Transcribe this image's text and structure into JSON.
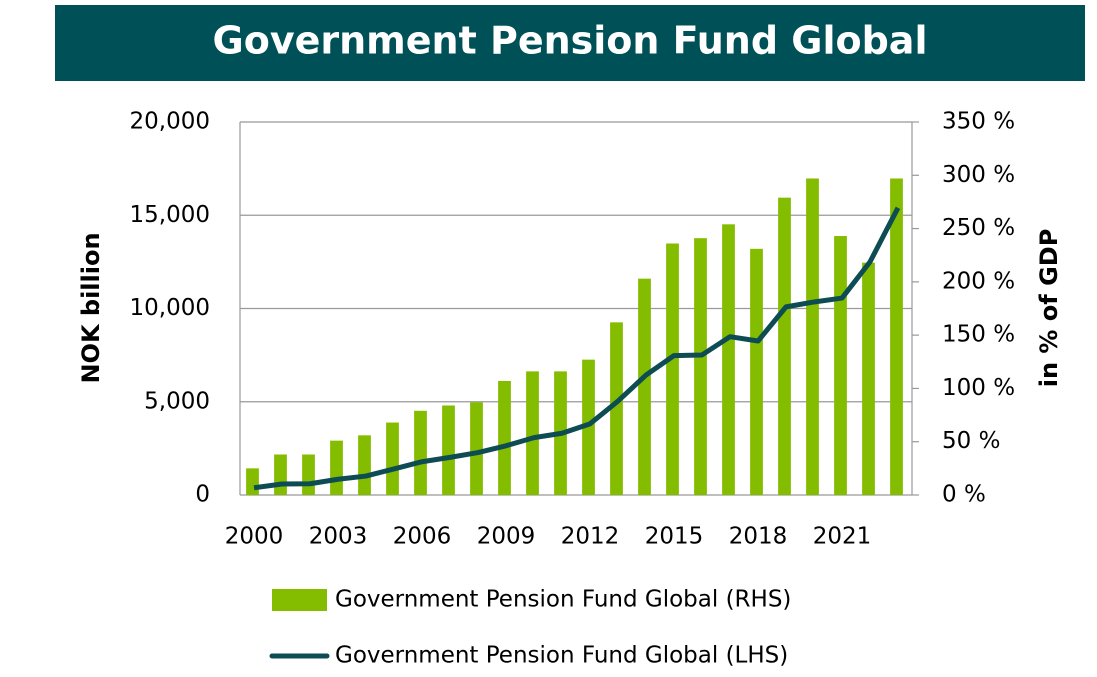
{
  "chart_data": {
    "type": "bar_line",
    "title": "Government Pension Fund Global",
    "categories": [
      "2000",
      null,
      null,
      "2003",
      null,
      null,
      "2006",
      null,
      null,
      "2009",
      null,
      null,
      "2012",
      null,
      null,
      "2015",
      null,
      null,
      "2018",
      null,
      null,
      "2021",
      null,
      null
    ],
    "series": [
      {
        "name": "Government Pension Fund Global (RHS)",
        "type": "bar",
        "axis": "y2",
        "color": "#84bd00",
        "values": [
          25,
          38,
          38,
          51,
          56,
          68,
          79,
          84,
          87,
          107,
          116,
          116,
          127,
          162,
          203,
          236,
          241,
          254,
          231,
          279,
          297,
          243,
          218,
          297
        ]
      },
      {
        "name": "Government Pension Fund Global (LHS)",
        "type": "line",
        "axis": "y",
        "color": "#0e4c54",
        "values": [
          386,
          590,
          604,
          845,
          1016,
          1399,
          1784,
          2019,
          2275,
          2640,
          3077,
          3312,
          3816,
          5038,
          6431,
          7475,
          7510,
          8488,
          8256,
          10088,
          10350,
          10560,
          12500,
          15400
        ]
      }
    ],
    "ylabel": "NOK billion",
    "y2label": "in % of GDP",
    "ylim": [
      0,
      20000
    ],
    "yticks": [
      0,
      {
        "value": 5000,
        "label": "5,000"
      },
      {
        "value": 10000,
        "label": "10,000"
      },
      {
        "value": 15000,
        "label": "15,000"
      },
      {
        "value": 20000,
        "label": "20,000"
      }
    ],
    "y2lim": [
      0,
      350
    ],
    "y2ticks": [
      {
        "value": 0,
        "label": "0 %"
      },
      {
        "value": 50,
        "label": "50 %"
      },
      {
        "value": 100,
        "label": "100 %"
      },
      {
        "value": 150,
        "label": "150 %"
      },
      {
        "value": 200,
        "label": "200 %"
      },
      {
        "value": 250,
        "label": "250 %"
      },
      {
        "value": 300,
        "label": "300 %"
      },
      {
        "value": 350,
        "label": "350 %"
      }
    ],
    "grid": true
  }
}
